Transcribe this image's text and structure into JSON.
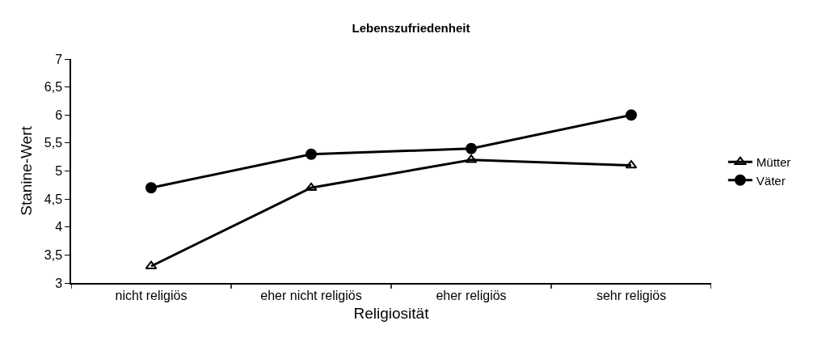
{
  "chart_data": {
    "type": "line",
    "title": "Lebenszufriedenheit",
    "xlabel": "Religiosität",
    "ylabel": "Stanine-Wert",
    "categories": [
      "nicht religiös",
      "eher nicht religiös",
      "eher religiös",
      "sehr religiös"
    ],
    "series": [
      {
        "name": "Mütter",
        "color": "#000000",
        "marker": "triangle",
        "values": [
          3.3,
          4.7,
          5.2,
          5.1
        ]
      },
      {
        "name": "Väter",
        "color": "#000000",
        "marker": "circle",
        "values": [
          4.7,
          5.3,
          5.4,
          6.0
        ]
      }
    ],
    "ylim": [
      3,
      7
    ],
    "yticks": [
      3,
      {
        "value": 3.5,
        "label": "3,5"
      },
      4,
      {
        "value": 4.5,
        "label": "4,5"
      },
      5,
      {
        "value": 5.5,
        "label": "5,5"
      },
      6,
      {
        "value": 6.5,
        "label": "6,5"
      },
      7
    ],
    "grid": false,
    "legend": "right",
    "line_style": "solid"
  }
}
